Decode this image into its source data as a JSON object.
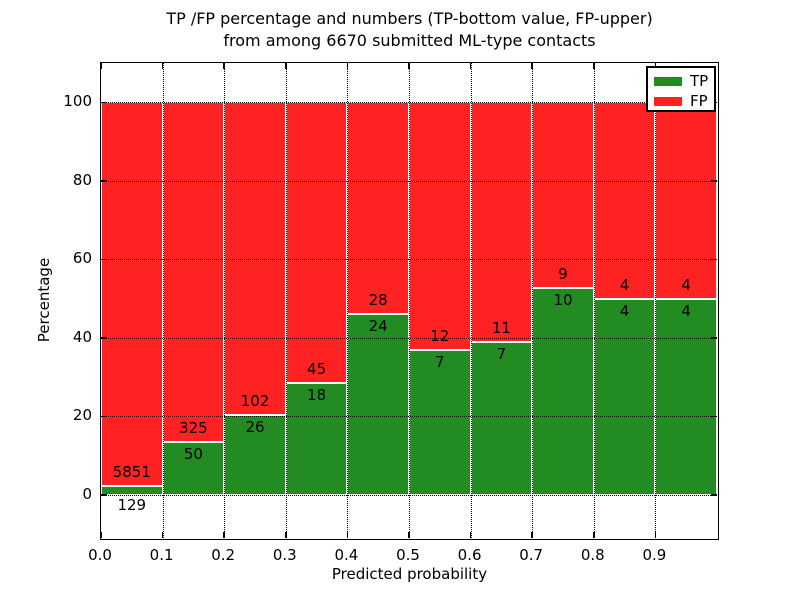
{
  "title": {
    "line1": "TP /FP percentage and numbers (TP-bottom value, FP-upper)",
    "line2": "from among 6670 submitted ML-type contacts"
  },
  "chart_data": {
    "type": "bar",
    "stacking": "percent_stacked",
    "title": "TP /FP percentage and numbers (TP-bottom value, FP-upper) from among 6670 submitted ML-type contacts",
    "xlabel": "Predicted probability",
    "ylabel": "Percentage",
    "total_contacts": 6670,
    "bins": [
      "0.0-0.1",
      "0.1-0.2",
      "0.2-0.3",
      "0.3-0.4",
      "0.4-0.5",
      "0.5-0.6",
      "0.6-0.7",
      "0.7-0.8",
      "0.8-0.9",
      "0.9-1.0"
    ],
    "series": [
      {
        "name": "TP",
        "color": "#228b22",
        "counts": [
          129,
          50,
          26,
          18,
          24,
          7,
          7,
          10,
          4,
          4
        ]
      },
      {
        "name": "FP",
        "color": "#ff2222",
        "counts": [
          5851,
          325,
          102,
          45,
          28,
          12,
          11,
          9,
          4,
          4
        ]
      }
    ],
    "yticks": [
      "0",
      "20",
      "40",
      "60",
      "80",
      "100"
    ],
    "ytick_values": [
      0,
      20,
      40,
      60,
      80,
      100
    ],
    "xticks": [
      "0.0",
      "0.1",
      "0.2",
      "0.3",
      "0.4",
      "0.5",
      "0.6",
      "0.7",
      "0.8",
      "0.9"
    ],
    "xtick_values": [
      0.0,
      0.1,
      0.2,
      0.3,
      0.4,
      0.5,
      0.6,
      0.7,
      0.8,
      0.9
    ],
    "xlim": [
      0.0,
      1.0
    ],
    "ylim": [
      -11,
      110
    ],
    "grid": "dotted",
    "legend_position": "upper right"
  }
}
